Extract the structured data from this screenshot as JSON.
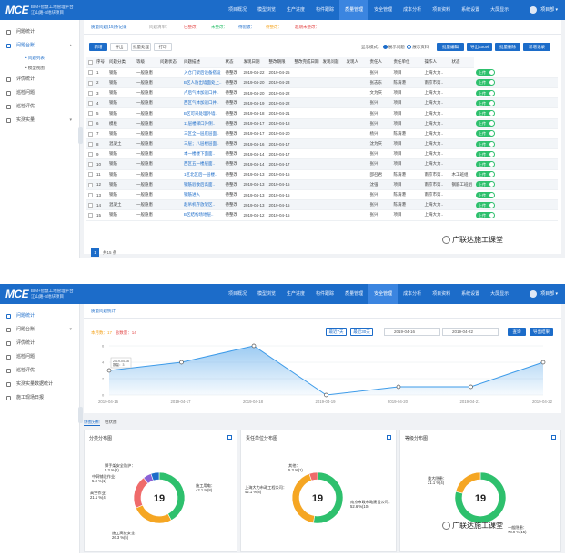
{
  "app": {
    "name_line1": "BIM+智慧工地管理平台",
    "name_line2": "江山路-B地块项目",
    "logo_text": "MCE",
    "user_name": "项目部"
  },
  "nav": [
    "项目概况",
    "模型浏览",
    "生产进度",
    "构件跟踪",
    "质量管理",
    "安全管理",
    "成本分析",
    "项目资料",
    "系统设置",
    "大屏显示"
  ],
  "nav_active_index": 4,
  "sidebar1": {
    "items": [
      "问题统计",
      "问题台账",
      "评优统计",
      "巡检问题",
      "巡检评优",
      "实测实量"
    ],
    "subitems": [
      "问题列表",
      "模型视图"
    ]
  },
  "sidebar2": {
    "items": [
      "问题统计",
      "问题台账",
      "评优统计",
      "巡检问题",
      "巡检评优",
      "实测实量数据统计",
      "施工现场日报"
    ]
  },
  "list": {
    "filter_tabs": [
      "质量问题(15)条记录",
      "问题清单：",
      "已整改：",
      "未整改：",
      "待验收：",
      "待整改：",
      "超期未整改："
    ],
    "buttons": [
      "新增",
      "导出",
      "批量处理",
      "打印"
    ],
    "right_controls": {
      "label": "显示模式：",
      "opt1": "展示问题",
      "opt2": "展示资料",
      "btn1": "批量编辑",
      "btn2": "导出Excel",
      "btn3": "批量删除",
      "btn4": "新增记录"
    },
    "columns": [
      "",
      "序号",
      "问题分类",
      "等级",
      "问题状态",
      "问题描述",
      "状态",
      "发现日期",
      "整改期限",
      "整改完成日期",
      "发现问题",
      "发现人",
      "责任人",
      "责任单位",
      "操作人",
      "状态"
    ],
    "rows": [
      [
        "1",
        "钢筋",
        "一般隐患",
        "",
        "入仓门架后设备搭设",
        "待整改",
        "2019-04-22",
        "2019-04-25",
        "",
        "",
        "",
        "张兴",
        "项目",
        "上海大力..",
        "",
        "上传"
      ],
      [
        "2",
        "钢筋",
        "一般隐患",
        "",
        "B区人防出墙面处上..",
        "待整改",
        "2019-04-20",
        "2019-04-23",
        "",
        "",
        "",
        "张志东",
        "陈海港",
        "南京市第..",
        "",
        "上传"
      ],
      [
        "3",
        "钢筋",
        "一般隐患",
        "",
        "卢后气体加速口并..",
        "待整改",
        "2019-04-20",
        "2019-04-22",
        "",
        "",
        "",
        "文为庆",
        "项目",
        "上海大力..",
        "",
        "上传"
      ],
      [
        "4",
        "钢筋",
        "一般隐患",
        "",
        "西区气体加速口并..",
        "待整改",
        "2019-04-19",
        "2019-04-22",
        "",
        "",
        "",
        "张兴",
        "项目",
        "上海大力..",
        "",
        "上传"
      ],
      [
        "5",
        "钢筋",
        "一般隐患",
        "",
        "B区可采处理外墙..",
        "待整改",
        "2019-04-18",
        "2019-04-21",
        "",
        "",
        "",
        "张兴",
        "项目",
        "上海大力..",
        "",
        "上传"
      ],
      [
        "6",
        "模板",
        "一般隐患",
        "",
        "11层楼梯口外侧..",
        "待整改",
        "2019-04-17",
        "2019-04-18",
        "",
        "",
        "",
        "张兴",
        "项目",
        "上海大力..",
        "",
        "上传"
      ],
      [
        "7",
        "钢筋",
        "一般隐患",
        "",
        "三区全一层底层面..",
        "待整改",
        "2019-04-17",
        "2019-04-20",
        "",
        "",
        "",
        "杨兴",
        "陈海港",
        "上海大力..",
        "",
        "上传"
      ],
      [
        "8",
        "混凝土",
        "一般隐患",
        "",
        "三层；八层楼层面..",
        "待整改",
        "2019-04-16",
        "2019-04-17",
        "",
        "",
        "",
        "沈为庆",
        "项目",
        "上海大力..",
        "",
        "上传"
      ],
      [
        "9",
        "钢筋",
        "一般隐患",
        "",
        "本一楼楼下面面..",
        "待整改",
        "2019-04-14",
        "2019-04-17",
        "",
        "",
        "",
        "张兴",
        "项目",
        "上海大力..",
        "",
        "上传"
      ],
      [
        "10",
        "钢筋",
        "一般隐患",
        "",
        "西区五一楼层面..",
        "待整改",
        "2019-04-14",
        "2019-04-17",
        "",
        "",
        "",
        "张兴",
        "项目",
        "上海大力..",
        "",
        "上传"
      ],
      [
        "11",
        "钢筋",
        "一般隐患",
        "",
        "1区北区后一层楼..",
        "待整改",
        "2019-04-13",
        "2019-04-15",
        "",
        "",
        "",
        "邵召君",
        "陈海港",
        "南京市第..",
        "木工班组",
        "上传"
      ],
      [
        "12",
        "钢筋",
        "一般隐患",
        "",
        "钢筋验收后高面..",
        "待整改",
        "2019-04-13",
        "2019-04-15",
        "",
        "",
        "",
        "沈强",
        "项目",
        "南京市第..",
        "钢筋工班组",
        "上传"
      ],
      [
        "13",
        "钢筋",
        "一般隐患",
        "",
        "钢筋进入",
        "待整改",
        "2019-04-13",
        "2019-04-15",
        "",
        "",
        "",
        "张兴",
        "陈海港",
        "南京市第..",
        "",
        "上传"
      ],
      [
        "14",
        "混凝土",
        "一般隐患",
        "",
        "起吊机存放架区..",
        "待整改",
        "2019-04-13",
        "2019-04-15",
        "",
        "",
        "",
        "张兴",
        "陈海港",
        "上海大力..",
        "",
        "上传"
      ],
      [
        "15",
        "钢筋",
        "一般隐患",
        "",
        "B区结构场地层..",
        "待整改",
        "2019-04-12",
        "2019-04-15",
        "",
        "",
        "",
        "张兴",
        "项目",
        "上海大力..",
        "",
        "上传"
      ]
    ],
    "pager": {
      "page": "1",
      "total": "共15",
      "size": "条"
    }
  },
  "stats": {
    "title": "质量问题统计",
    "counts": {
      "label1": "本月数：",
      "value1": "17",
      "label2": "总数量：",
      "value2": "14"
    },
    "filters": {
      "btn1": "最近7天",
      "btn2": "最近30天",
      "date_from": "2019-04-16",
      "date_to": "2019-04-22",
      "search": "查询",
      "export": "导出结果"
    },
    "tooltip": {
      "date": "2019-04-16",
      "label": "数量：3"
    },
    "subtabs": [
      "饼图分析",
      "柱状图"
    ],
    "card1": {
      "title": "分类分布图",
      "total": "19"
    },
    "card2": {
      "title": "责任单位分布图",
      "total": "19"
    },
    "card3": {
      "title": "等级分布图",
      "total": "19"
    }
  },
  "chart_data": [
    {
      "type": "area",
      "x": [
        "2019-04-16",
        "2019-04-17",
        "2019-04-18",
        "2019-04-19",
        "2019-04-20",
        "2019-04-21",
        "2019-04-22"
      ],
      "y": [
        3,
        4,
        6,
        0,
        1,
        1,
        4
      ],
      "ylim": [
        0,
        6
      ]
    },
    {
      "type": "pie",
      "labels": [
        "施工用电：\n42.1 %(8)",
        "施工高处安全：\n26.3 %(5)",
        "高空作业：\n21.1 %(4)",
        "中洞铺设作业：\n5.3 %(1)",
        "脚手架安全防护：\n5.3 %(1)"
      ],
      "values": [
        8,
        5,
        4,
        1,
        1
      ],
      "colors": [
        "#2ec06d",
        "#f5a623",
        "#ef6b6b",
        "#8b62d6",
        "#1c6cc9"
      ]
    },
    {
      "type": "pie",
      "labels": [
        "南京市政市政建设公司：\n52.6 %(10)",
        "上海大力市政工程公司：\n42.1 %(8)",
        "其他：\n5.3 %(1)"
      ],
      "values": [
        10,
        8,
        1
      ],
      "colors": [
        "#2ec06d",
        "#f5a623",
        "#ef6b6b"
      ]
    },
    {
      "type": "pie",
      "labels": [
        "一般隐患：\n78.9 %(15)",
        "重大隐患：\n21.1 %(4)"
      ],
      "values": [
        15,
        4
      ],
      "colors": [
        "#2ec06d",
        "#f5a623"
      ]
    }
  ],
  "watermark": "广联达施工课堂"
}
